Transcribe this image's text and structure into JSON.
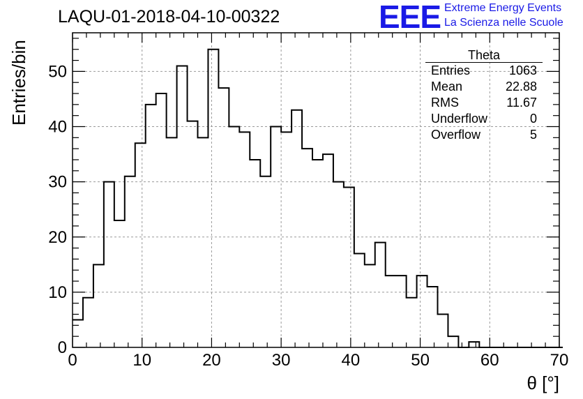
{
  "title": "LAQU-01-2018-04-10-00322",
  "brand": {
    "logo_text": "EEE",
    "line1": "Extreme Energy Events",
    "line2": "La Scienza nelle Scuole",
    "color": "#1a1ae6"
  },
  "stats": {
    "name": "Theta",
    "rows": [
      {
        "label": "Entries",
        "value": "1063"
      },
      {
        "label": "Mean",
        "value": "22.88"
      },
      {
        "label": "RMS",
        "value": "11.67"
      },
      {
        "label": "Underflow",
        "value": "0"
      },
      {
        "label": "Overflow",
        "value": "5"
      }
    ]
  },
  "chart_data": {
    "type": "bar",
    "histogram": true,
    "title": "LAQU-01-2018-04-10-00322",
    "xlabel": "θ [°]",
    "ylabel": "Entries/bin",
    "xlim": [
      0,
      70
    ],
    "ylim": [
      0,
      57
    ],
    "grid": true,
    "x_ticks": [
      0,
      10,
      20,
      30,
      40,
      50,
      60,
      70
    ],
    "y_ticks": [
      0,
      10,
      20,
      30,
      40,
      50
    ],
    "bin_width": 1.5,
    "bin_edges_start": 0,
    "values": [
      5,
      9,
      15,
      30,
      23,
      31,
      37,
      44,
      46,
      38,
      51,
      41,
      38,
      54,
      47,
      40,
      39,
      34,
      31,
      40,
      39,
      43,
      36,
      34,
      35,
      30,
      29,
      17,
      15,
      19,
      13,
      13,
      9,
      13,
      11,
      6,
      2,
      0,
      1,
      0,
      0,
      0,
      0,
      0,
      0,
      0,
      0
    ]
  }
}
